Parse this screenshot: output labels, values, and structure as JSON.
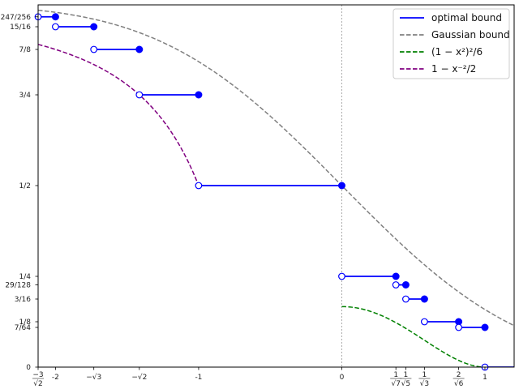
{
  "chart_data": {
    "type": "line",
    "title": "",
    "xlabel": "",
    "ylabel": "",
    "xlim": [
      -2.1213,
      1.204
    ],
    "ylim": [
      0,
      0.998
    ],
    "grid": false,
    "vline_at_x": 0,
    "legend_position": "upper right",
    "x_ticks": [
      {
        "value": -2.1213,
        "label": "-3/√2"
      },
      {
        "value": -2,
        "label": "-2"
      },
      {
        "value": -1.7321,
        "label": "−√3"
      },
      {
        "value": -1.4142,
        "label": "−√2"
      },
      {
        "value": -1,
        "label": "-1"
      },
      {
        "value": 0,
        "label": "0"
      },
      {
        "value": 0.378,
        "label": "1/√7"
      },
      {
        "value": 0.4472,
        "label": "1/√5"
      },
      {
        "value": 0.5774,
        "label": "1/√3"
      },
      {
        "value": 0.8165,
        "label": "2/√6"
      },
      {
        "value": 1,
        "label": "1"
      }
    ],
    "y_ticks": [
      {
        "value": 0,
        "label": "0"
      },
      {
        "value": 0.109375,
        "label": "7/64"
      },
      {
        "value": 0.125,
        "label": "1/8"
      },
      {
        "value": 0.1875,
        "label": "3/16"
      },
      {
        "value": 0.2265625,
        "label": "29/128"
      },
      {
        "value": 0.25,
        "label": "1/4"
      },
      {
        "value": 0.5,
        "label": "1/2"
      },
      {
        "value": 0.75,
        "label": "3/4"
      },
      {
        "value": 0.875,
        "label": "7/8"
      },
      {
        "value": 0.9375,
        "label": "15/16"
      },
      {
        "value": 0.96484375,
        "label": "247/256"
      }
    ],
    "series": [
      {
        "name": "optimal bound",
        "style": "solid-steps",
        "color": "#0000ff",
        "segments": [
          {
            "x0": -2.1213,
            "x1": -2,
            "y": 0.96484375
          },
          {
            "x0": -2,
            "x1": -1.7321,
            "y": 0.9375
          },
          {
            "x0": -1.7321,
            "x1": -1.4142,
            "y": 0.875
          },
          {
            "x0": -1.4142,
            "x1": -1,
            "y": 0.75
          },
          {
            "x0": -1,
            "x1": 0,
            "y": 0.5
          },
          {
            "x0": 0,
            "x1": 0.378,
            "y": 0.25
          },
          {
            "x0": 0.378,
            "x1": 0.4472,
            "y": 0.2265625
          },
          {
            "x0": 0.4472,
            "x1": 0.5774,
            "y": 0.1875
          },
          {
            "x0": 0.5774,
            "x1": 0.8165,
            "y": 0.125
          },
          {
            "x0": 0.8165,
            "x1": 1,
            "y": 0.109375
          },
          {
            "x0": 1,
            "x1": 1.204,
            "y": 0
          }
        ]
      },
      {
        "name": "Gaussian bound",
        "style": "dashed",
        "color": "#808080",
        "function": "Q(x) Gaussian tail complement, 0.5 at x=0"
      },
      {
        "name": "(1 − x²)²/6",
        "style": "dashed",
        "color": "#008000",
        "domain": [
          0,
          1
        ]
      },
      {
        "name": "1 − x⁻²/2",
        "style": "dashed",
        "color": "#800080",
        "domain": [
          -2.1213,
          -1
        ]
      }
    ]
  },
  "legend": {
    "items": [
      {
        "label": "optimal bound",
        "color": "#0000ff",
        "dash": false
      },
      {
        "label": "Gaussian bound",
        "color": "#808080",
        "dash": true
      },
      {
        "label": "(1 − x²)²/6",
        "color": "#008000",
        "dash": true
      },
      {
        "label": "1 − x⁻²/2",
        "color": "#800080",
        "dash": true
      }
    ]
  }
}
